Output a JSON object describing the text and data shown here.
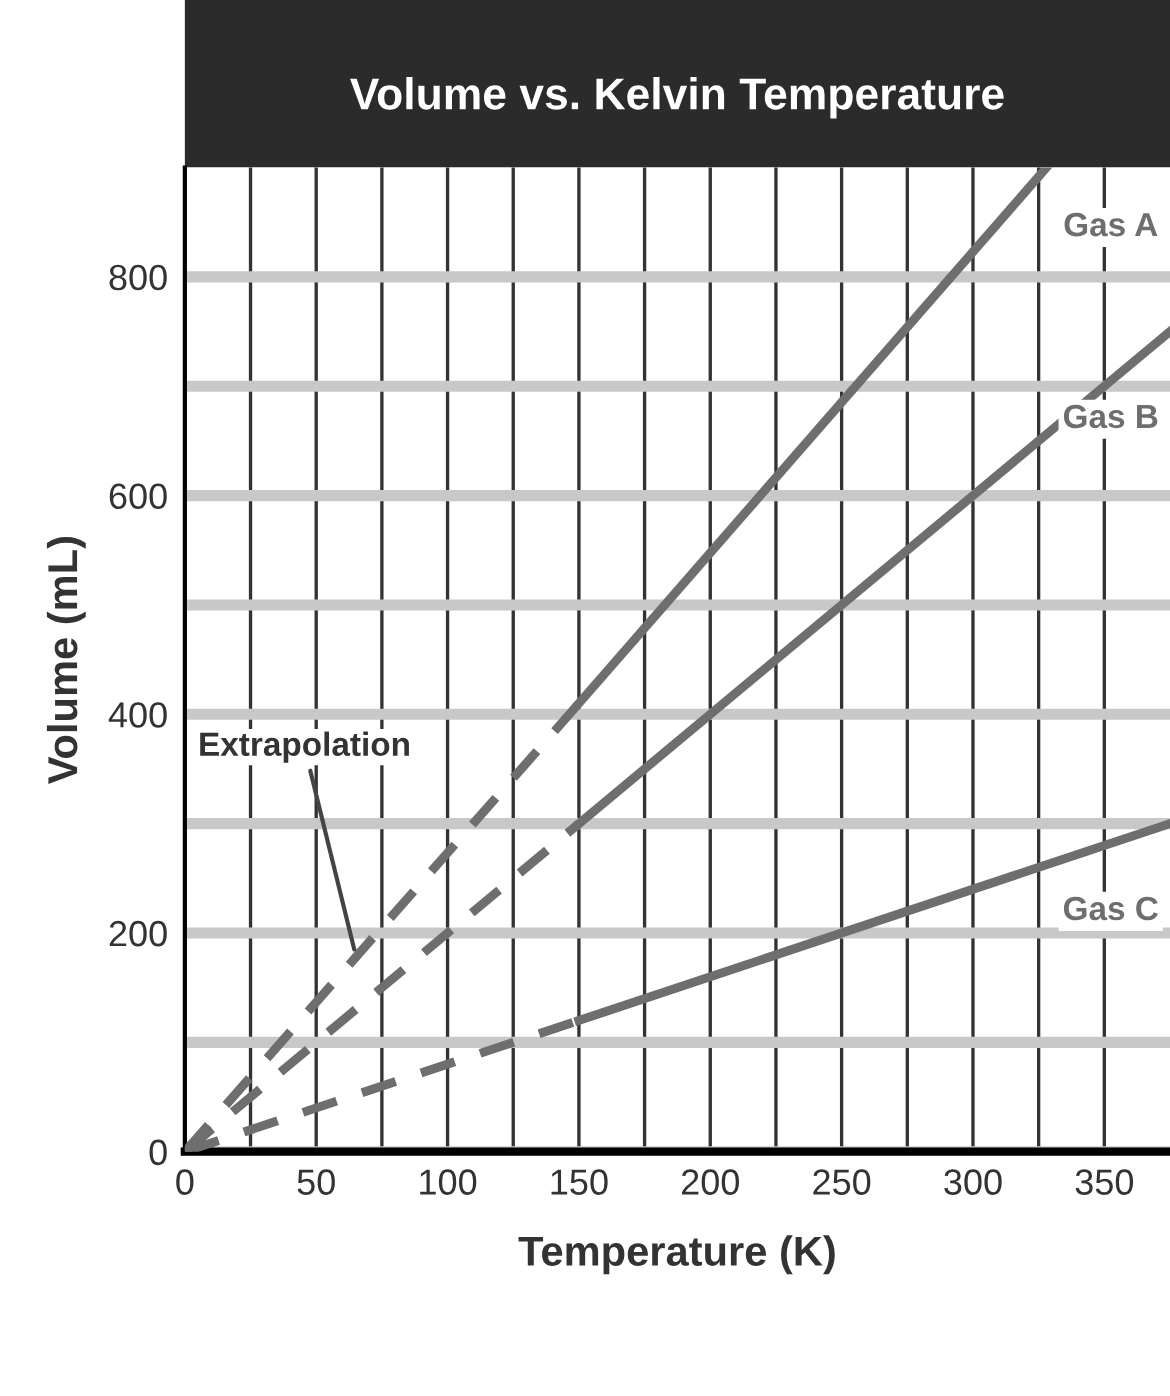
{
  "chart_data": {
    "type": "line",
    "title": "Volume vs. Kelvin Temperature",
    "xlabel": "Temperature (K)",
    "ylabel": "Volume (mL)",
    "xlim": [
      0,
      375
    ],
    "ylim": [
      0,
      900
    ],
    "xticks": [
      0,
      {
        "value": 25,
        "label": null
      },
      50,
      {
        "value": 75,
        "label": null
      },
      100,
      {
        "value": 125,
        "label": null
      },
      150,
      {
        "value": 175,
        "label": null
      },
      200,
      {
        "value": 225,
        "label": null
      },
      250,
      {
        "value": 275,
        "label": null
      },
      300,
      {
        "value": 325,
        "label": null
      },
      350
    ],
    "yticks": [
      0,
      {
        "value": 100,
        "label": null
      },
      200,
      {
        "value": 300,
        "label": null
      },
      400,
      {
        "value": 500,
        "label": null
      },
      600,
      {
        "value": 700,
        "label": null
      },
      800
    ],
    "grid": true,
    "legend": false,
    "series": [
      {
        "name": "Gas A",
        "color": "#6e6e6e",
        "x": [
          150,
          328
        ],
        "values": [
          410,
          900
        ],
        "line_style": "solid"
      },
      {
        "name": "Gas B",
        "color": "#6e6e6e",
        "x": [
          150,
          375
        ],
        "values": [
          300,
          750
        ],
        "line_style": "solid"
      },
      {
        "name": "Gas C",
        "color": "#6e6e6e",
        "x": [
          150,
          375
        ],
        "values": [
          120,
          300
        ],
        "line_style": "solid"
      },
      {
        "color": "#6e6e6e",
        "x": [
          0,
          150
        ],
        "values": [
          0,
          410
        ],
        "line_style": "dashed"
      },
      {
        "color": "#6e6e6e",
        "x": [
          0,
          150
        ],
        "values": [
          0,
          300
        ],
        "line_style": "dashed"
      },
      {
        "color": "#6e6e6e",
        "x": [
          0,
          150
        ],
        "values": [
          0,
          120
        ],
        "line_style": "dashed"
      }
    ],
    "annotations": [
      {
        "text": "Extrapolation",
        "x": 65,
        "y": 180
      }
    ]
  }
}
